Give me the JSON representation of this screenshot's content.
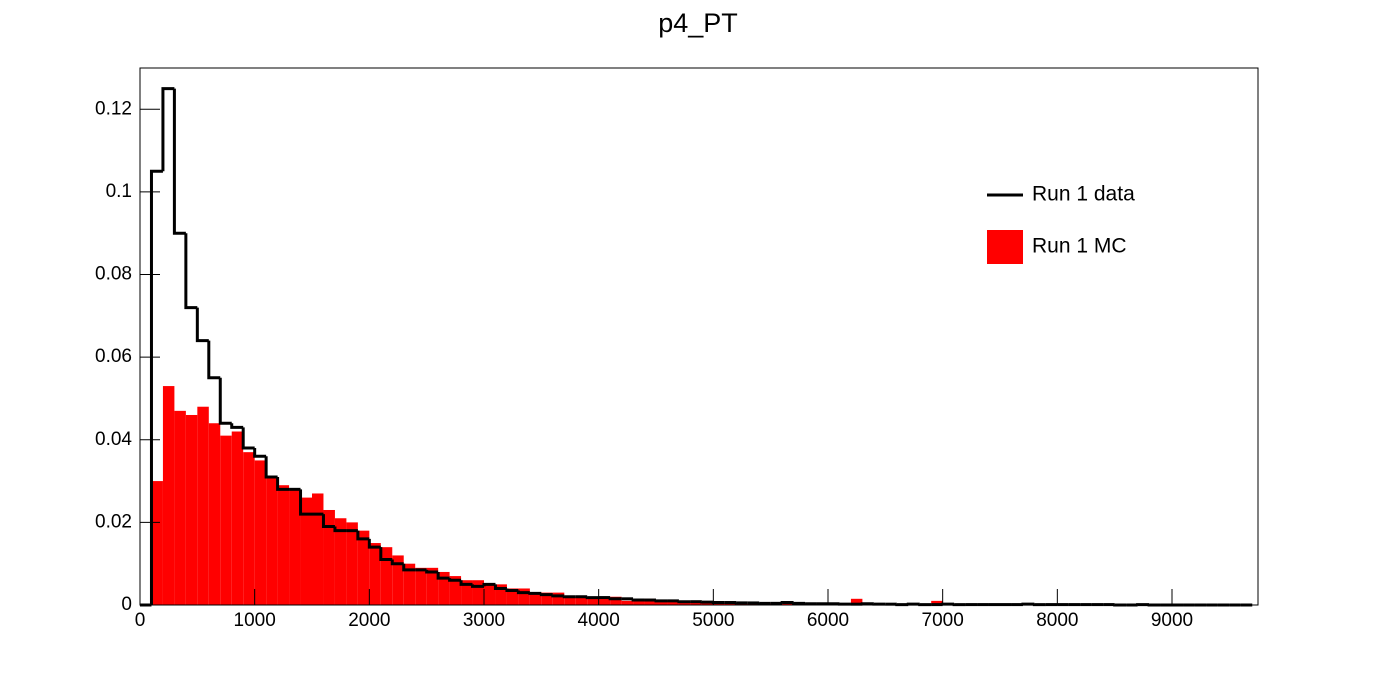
{
  "chart_data": {
    "type": "histogram",
    "title": "p4_PT",
    "bins": [
      0,
      100,
      200,
      300,
      400,
      500,
      600,
      700,
      800,
      900,
      1000,
      1100,
      1200,
      1300,
      1400,
      1500,
      1600,
      1700,
      1800,
      1900,
      2000,
      2100,
      2200,
      2300,
      2400,
      2500,
      2600,
      2700,
      2800,
      2900,
      3000,
      3100,
      3200,
      3300,
      3400,
      3500,
      3600,
      3700,
      3800,
      3900,
      4000,
      4100,
      4200,
      4300,
      4400,
      4500,
      4600,
      4700,
      4800,
      4900,
      5000,
      5100,
      5200,
      5300,
      5400,
      5500,
      5600,
      5700,
      5800,
      5900,
      6000,
      6100,
      6200,
      6300,
      6400,
      6500,
      6600,
      6700,
      6800,
      6900,
      7000,
      7100,
      7200,
      7300,
      7400,
      7500,
      7600,
      7700,
      7800,
      7900,
      8000,
      8100,
      8200,
      8300,
      8400,
      8500,
      8600,
      8700,
      8800,
      8900,
      9000,
      9100,
      9200,
      9300,
      9400,
      9500,
      9600,
      9700
    ],
    "series": [
      {
        "name": "Run 1 MC",
        "color": "#ff0000",
        "style": "fill",
        "values": [
          0,
          0.03,
          0.053,
          0.047,
          0.046,
          0.048,
          0.044,
          0.041,
          0.042,
          0.037,
          0.035,
          0.031,
          0.029,
          0.028,
          0.026,
          0.027,
          0.023,
          0.021,
          0.02,
          0.018,
          0.015,
          0.014,
          0.012,
          0.01,
          0.009,
          0.009,
          0.008,
          0.007,
          0.006,
          0.006,
          0.005,
          0.005,
          0.004,
          0.004,
          0.003,
          0.003,
          0.003,
          0.002,
          0.002,
          0.002,
          0.0015,
          0.002,
          0.001,
          0.001,
          0.0015,
          0.001,
          0.001,
          0.0008,
          0.0006,
          0.0005,
          0.0005,
          0.0004,
          0.0004,
          0.0003,
          0.0003,
          0.0004,
          0.0003,
          0.0002,
          0.0002,
          0.0002,
          0.0002,
          0.0002,
          0.0015,
          0.0002,
          0.0001,
          0.0001,
          0.0001,
          0.0001,
          0.0001,
          0.001,
          0.0001,
          0.0001,
          0.0001,
          0.0001,
          0.0001,
          0,
          0.0001,
          0,
          0,
          0,
          0,
          0,
          0,
          0,
          0,
          0,
          0,
          0,
          0,
          0,
          0,
          0,
          0,
          0,
          0,
          0,
          0
        ]
      },
      {
        "name": "Run 1 data",
        "color": "#000000",
        "style": "step",
        "values": [
          0,
          0.105,
          0.125,
          0.09,
          0.072,
          0.064,
          0.055,
          0.044,
          0.043,
          0.038,
          0.036,
          0.031,
          0.028,
          0.028,
          0.022,
          0.022,
          0.019,
          0.018,
          0.018,
          0.016,
          0.014,
          0.011,
          0.01,
          0.0085,
          0.0085,
          0.008,
          0.0065,
          0.006,
          0.005,
          0.0045,
          0.005,
          0.004,
          0.0035,
          0.003,
          0.0028,
          0.0025,
          0.0022,
          0.002,
          0.002,
          0.0018,
          0.0018,
          0.0015,
          0.0015,
          0.0012,
          0.0012,
          0.001,
          0.001,
          0.0008,
          0.0008,
          0.0007,
          0.0006,
          0.0006,
          0.0005,
          0.0005,
          0.0004,
          0.0004,
          0.0006,
          0.0004,
          0.0003,
          0.0003,
          0.0003,
          0.0002,
          0.0002,
          0.0003,
          0.0002,
          0.0002,
          0.0001,
          0.0002,
          0.0001,
          0.0001,
          0.0002,
          0.0001,
          0.0001,
          0.0001,
          0.0001,
          0.0001,
          0.0001,
          0.0002,
          0.0001,
          0.0001,
          0.0001,
          0.0001,
          0.0001,
          0.0001,
          0.0001,
          0,
          0,
          0.0001,
          0,
          0,
          0,
          0,
          0,
          0,
          0,
          0,
          0
        ]
      }
    ],
    "xlim": [
      0,
      9750
    ],
    "ylim": [
      0,
      0.13
    ],
    "xticks": [
      0,
      1000,
      2000,
      3000,
      4000,
      5000,
      6000,
      7000,
      8000,
      9000
    ],
    "yticks": [
      0,
      0.02,
      0.04,
      0.06,
      0.08,
      0.1,
      0.12
    ],
    "legend": "top-right"
  }
}
